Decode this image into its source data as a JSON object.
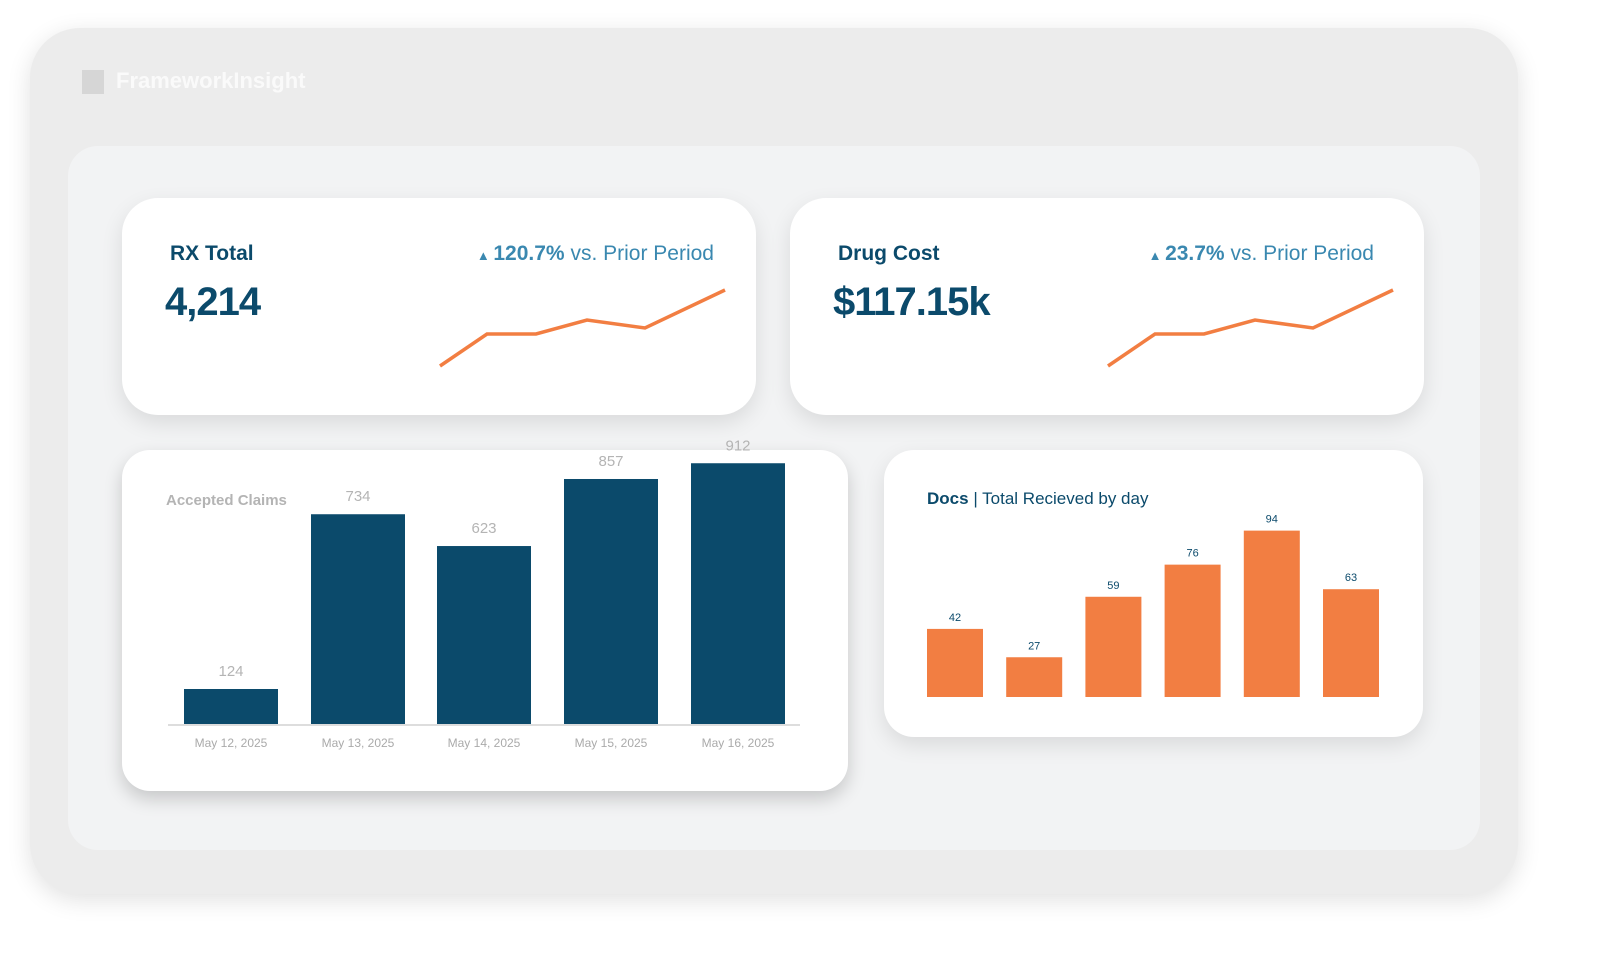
{
  "brand": {
    "name": "FrameworkInsight"
  },
  "kpis": [
    {
      "title": "RX Total",
      "value": "4,214",
      "change": "120.7%",
      "change_suffix": " vs. Prior Period",
      "trend_icon": "triangle-up-icon",
      "sparkline": [
        0,
        32,
        32,
        46,
        38,
        76
      ]
    },
    {
      "title": "Drug Cost",
      "value": "$117.15k",
      "change": "23.7%",
      "change_suffix": " vs. Prior Period",
      "trend_icon": "triangle-up-icon",
      "sparkline": [
        0,
        32,
        32,
        46,
        38,
        76
      ]
    }
  ],
  "colors": {
    "navy": "#0b4a6b",
    "orange": "#f27e42",
    "accent": "#3a88b0"
  },
  "chart_data": [
    {
      "type": "bar",
      "title": "Accepted Claims",
      "categories": [
        "May 12, 2025",
        "May 13, 2025",
        "May 14, 2025",
        "May 15, 2025",
        "May 16, 2025"
      ],
      "values": [
        124,
        734,
        623,
        857,
        912
      ],
      "color": "#0b4a6b"
    },
    {
      "type": "bar",
      "title": "Docs",
      "subtitle": "Total Recieved by day",
      "separator": "|",
      "categories": [
        "",
        "",
        "",
        "",
        "",
        ""
      ],
      "values": [
        42,
        27,
        59,
        76,
        94,
        63
      ],
      "color": "#f27e42"
    }
  ]
}
